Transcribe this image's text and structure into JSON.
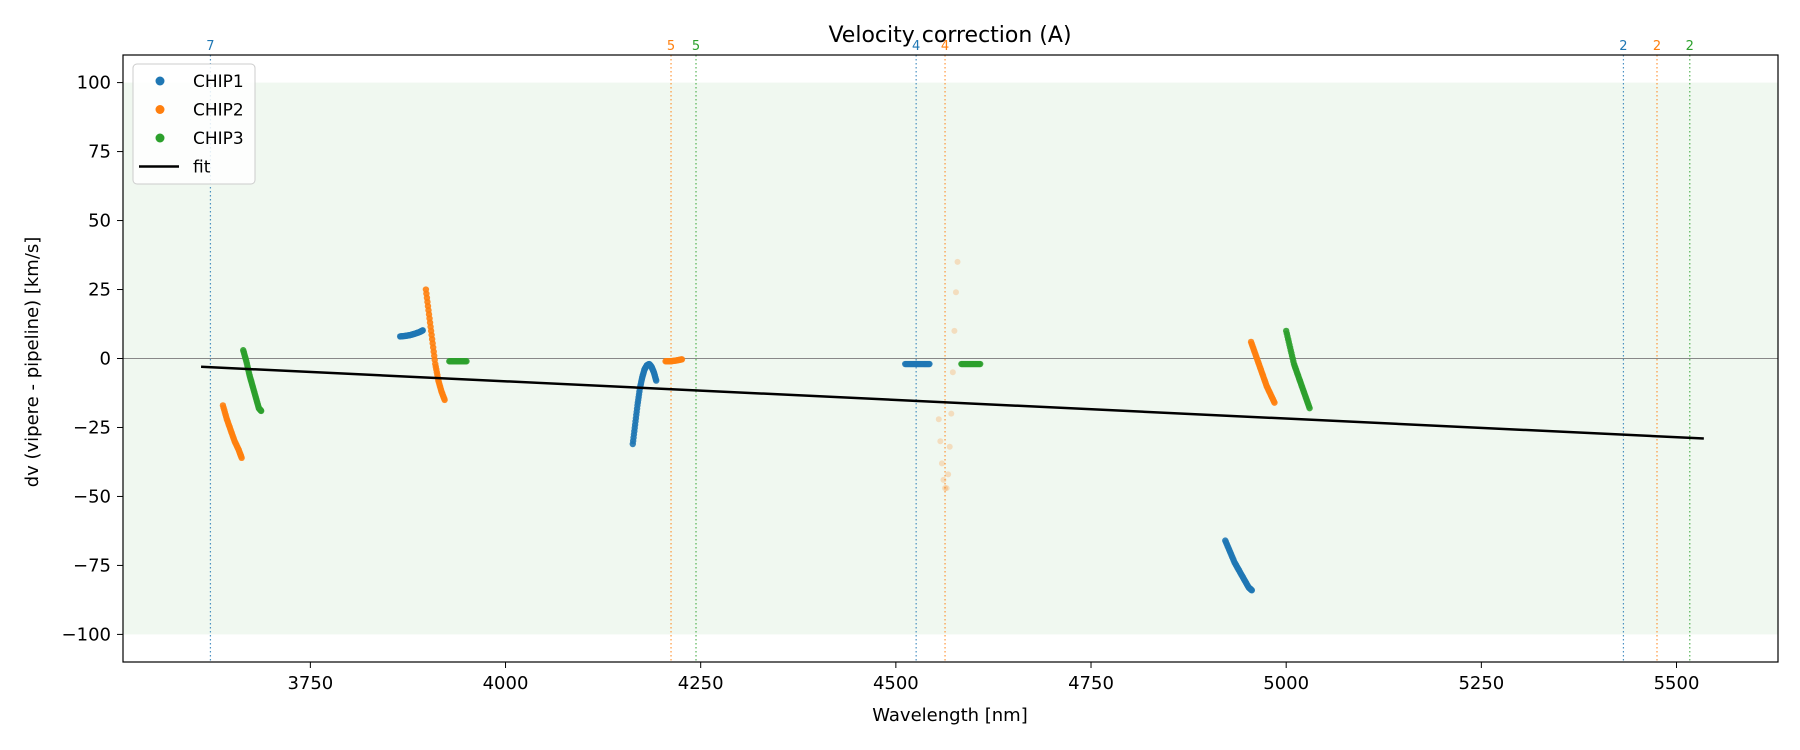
{
  "chart_data": {
    "type": "scatter",
    "title": "Velocity correction (A)",
    "xlabel": "Wavelength [nm]",
    "ylabel": "dv (vipere - pipeline) [km/s]",
    "xlim": [
      3510,
      5630
    ],
    "ylim": [
      -110,
      110
    ],
    "xticks": [
      3750,
      4000,
      4250,
      4500,
      4750,
      5000,
      5250,
      5500
    ],
    "yticks": [
      100,
      75,
      50,
      25,
      0,
      -25,
      -50,
      -75,
      -100
    ],
    "grid": false,
    "legend_position": "top-left",
    "shaded_band": {
      "y_from": -100,
      "y_to": 100,
      "color": "#2ca02c"
    },
    "zero_line": {
      "y": 0,
      "color": "#888888"
    },
    "colors": {
      "CHIP1": "#1f77b4",
      "CHIP2": "#ff7f0e",
      "CHIP3": "#2ca02c",
      "fit": "#000000"
    },
    "legend": [
      {
        "label": "CHIP1",
        "kind": "point",
        "color": "#1f77b4"
      },
      {
        "label": "CHIP2",
        "kind": "point",
        "color": "#ff7f0e"
      },
      {
        "label": "CHIP3",
        "kind": "point",
        "color": "#2ca02c"
      },
      {
        "label": "fit",
        "kind": "line",
        "color": "#000000"
      }
    ],
    "series": [
      {
        "name": "CHIP1",
        "color": "#1f77b4",
        "segments": [
          {
            "points": [
              [
                3865,
                8
              ],
              [
                3872,
                8.2
              ],
              [
                3878,
                8.5
              ],
              [
                3884,
                9
              ],
              [
                3890,
                9.6
              ],
              [
                3894,
                10.2
              ]
            ]
          },
          {
            "points": [
              [
                4163,
                -31
              ],
              [
                4166,
                -24
              ],
              [
                4169,
                -17
              ],
              [
                4172,
                -11
              ],
              [
                4175,
                -7
              ],
              [
                4178,
                -4
              ],
              [
                4181,
                -2.5
              ],
              [
                4184,
                -2
              ],
              [
                4187,
                -3
              ],
              [
                4190,
                -5
              ],
              [
                4193,
                -8
              ]
            ]
          },
          {
            "points": [
              [
                4512,
                -2
              ],
              [
                4520,
                -2
              ],
              [
                4528,
                -2
              ],
              [
                4536,
                -2
              ],
              [
                4543,
                -2
              ]
            ]
          },
          {
            "points": [
              [
                4922,
                -66
              ],
              [
                4928,
                -70
              ],
              [
                4934,
                -74
              ],
              [
                4940,
                -77
              ],
              [
                4946,
                -80
              ],
              [
                4952,
                -83
              ],
              [
                4956,
                -84
              ]
            ]
          }
        ]
      },
      {
        "name": "CHIP2",
        "color": "#ff7f0e",
        "segments": [
          {
            "points": [
              [
                3638,
                -17
              ],
              [
                3643,
                -22
              ],
              [
                3648,
                -26
              ],
              [
                3653,
                -30
              ],
              [
                3658,
                -33
              ],
              [
                3662,
                -36
              ]
            ]
          },
          {
            "points": [
              [
                3898,
                25
              ],
              [
                3902,
                16
              ],
              [
                3906,
                7
              ],
              [
                3910,
                -2
              ],
              [
                3914,
                -8
              ],
              [
                3918,
                -12
              ],
              [
                3922,
                -15
              ]
            ]
          },
          {
            "points": [
              [
                4205,
                -1
              ],
              [
                4212,
                -1
              ],
              [
                4219,
                -0.7
              ],
              [
                4226,
                -0.3
              ]
            ]
          },
          {
            "points": [
              [
                4555,
                -22
              ],
              [
                4557,
                -30
              ],
              [
                4559,
                -38
              ],
              [
                4561,
                -44
              ],
              [
                4563,
                -47
              ],
              [
                4565,
                -47
              ],
              [
                4567,
                -42
              ],
              [
                4569,
                -32
              ],
              [
                4571,
                -20
              ],
              [
                4573,
                -5
              ],
              [
                4575,
                10
              ],
              [
                4577,
                24
              ],
              [
                4579,
                35
              ]
            ],
            "faint": true
          },
          {
            "points": [
              [
                4955,
                6
              ],
              [
                4960,
                2
              ],
              [
                4965,
                -2
              ],
              [
                4970,
                -6
              ],
              [
                4975,
                -10
              ],
              [
                4980,
                -13
              ],
              [
                4985,
                -16
              ]
            ]
          }
        ]
      },
      {
        "name": "CHIP3",
        "color": "#2ca02c",
        "segments": [
          {
            "points": [
              [
                3664,
                3
              ],
              [
                3668,
                -1
              ],
              [
                3672,
                -6
              ],
              [
                3676,
                -10
              ],
              [
                3680,
                -14
              ],
              [
                3684,
                -18
              ],
              [
                3687,
                -19
              ]
            ]
          },
          {
            "points": [
              [
                3928,
                -1
              ],
              [
                3935,
                -1
              ],
              [
                3942,
                -1
              ],
              [
                3950,
                -1
              ]
            ]
          },
          {
            "points": [
              [
                4584,
                -2
              ],
              [
                4592,
                -2
              ],
              [
                4600,
                -2
              ],
              [
                4608,
                -2
              ]
            ]
          },
          {
            "points": [
              [
                5000,
                10
              ],
              [
                5005,
                4
              ],
              [
                5010,
                -2
              ],
              [
                5015,
                -6
              ],
              [
                5020,
                -10
              ],
              [
                5025,
                -14
              ],
              [
                5030,
                -18
              ]
            ]
          }
        ]
      }
    ],
    "fit_line": {
      "name": "fit",
      "points": [
        [
          3610,
          -3
        ],
        [
          5535,
          -29
        ]
      ]
    },
    "vertical_markers": [
      {
        "x": 3622,
        "label": "7",
        "color": "#1f77b4"
      },
      {
        "x": 4212,
        "label": "5",
        "color": "#ff7f0e"
      },
      {
        "x": 4244,
        "label": "5",
        "color": "#2ca02c"
      },
      {
        "x": 4526,
        "label": "4",
        "color": "#1f77b4"
      },
      {
        "x": 4563,
        "label": "4",
        "color": "#ff7f0e"
      },
      {
        "x": 5432,
        "label": "2",
        "color": "#1f77b4"
      },
      {
        "x": 5475,
        "label": "2",
        "color": "#ff7f0e"
      },
      {
        "x": 5517,
        "label": "2",
        "color": "#2ca02c"
      }
    ]
  }
}
